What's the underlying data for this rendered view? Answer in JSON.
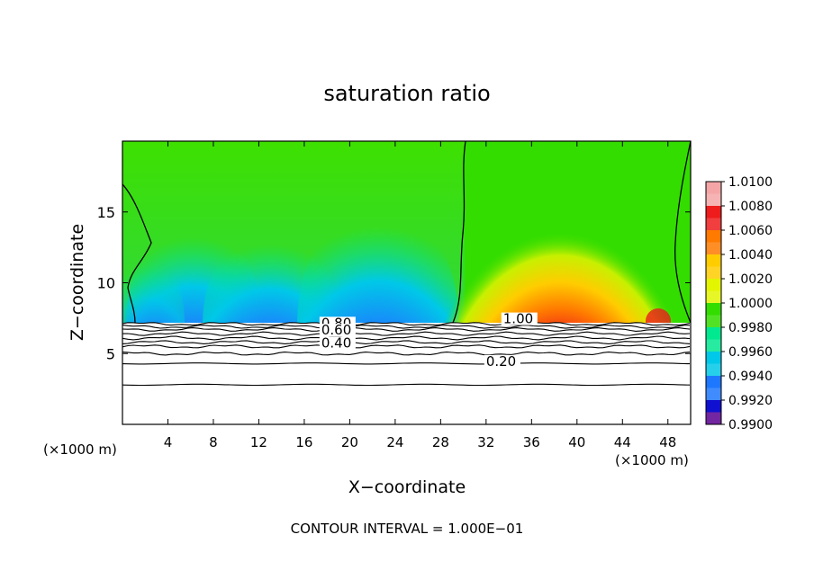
{
  "chart_data": {
    "type": "heatmap",
    "title": "saturation ratio",
    "xlabel": "X−coordinate",
    "ylabel": "Z−coordinate",
    "x_unit_left": "(×1000 m)",
    "x_unit_right": "(×1000 m)",
    "footer": "CONTOUR INTERVAL = 1.000E−01",
    "xlim": [
      0,
      50
    ],
    "ylim": [
      0,
      20
    ],
    "x_ticks": [
      4,
      8,
      12,
      16,
      20,
      24,
      28,
      32,
      36,
      40,
      44,
      48
    ],
    "y_ticks": [
      5,
      10,
      15
    ],
    "x_tick_labels": [
      "4",
      "8",
      "12",
      "16",
      "20",
      "24",
      "28",
      "32",
      "36",
      "40",
      "44",
      "48"
    ],
    "y_tick_labels": [
      "5",
      "10",
      "15"
    ],
    "colorbar": {
      "levels": [
        "1.0100",
        "1.0080",
        "1.0060",
        "1.0040",
        "1.0020",
        "1.0000",
        "0.9980",
        "0.9960",
        "0.9940",
        "0.9920",
        "0.9900"
      ],
      "colors": [
        "#f4a6a6",
        "#ee1c1c",
        "#ff7a00",
        "#ffcc00",
        "#e3f500",
        "#33dd00",
        "#00e890",
        "#00c8e8",
        "#1e78ff",
        "#1010d0",
        "#5a0090"
      ]
    },
    "contour_labels": [
      {
        "text": "1.00",
        "x": 33.5,
        "y": 7.2
      },
      {
        "text": "0.80",
        "x": 17.5,
        "y": 6.9
      },
      {
        "text": "0.60",
        "x": 17.5,
        "y": 6.4
      },
      {
        "text": "0.40",
        "x": 17.5,
        "y": 5.5
      },
      {
        "text": "0.20",
        "x": 32.0,
        "y": 4.2
      }
    ],
    "contour_lines_z": [
      7.1,
      6.9,
      6.7,
      6.4,
      6.1,
      5.8,
      5.5,
      5.0,
      4.3,
      2.8
    ]
  }
}
